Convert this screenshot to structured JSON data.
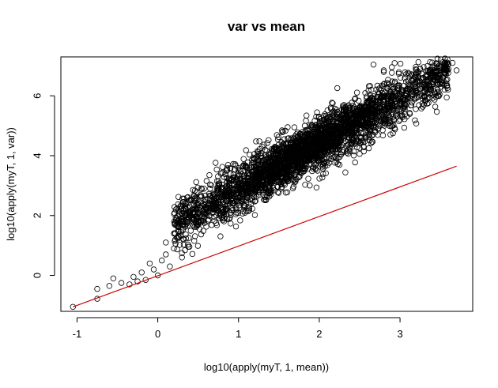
{
  "chart_data": {
    "type": "scatter",
    "title": "var vs mean",
    "xlabel": "log10(apply(myT, 1, mean))",
    "ylabel": "log10(apply(myT, 1, var))",
    "xlim": [
      -1.2,
      3.9
    ],
    "ylim": [
      -1.2,
      7.3
    ],
    "x_ticks": [
      -1,
      0,
      1,
      2,
      3
    ],
    "y_ticks": [
      0,
      2,
      4,
      6
    ],
    "x_tick_labels": [
      "-1",
      "0",
      "1",
      "2",
      "3"
    ],
    "y_tick_labels": [
      "0",
      "2",
      "4",
      "6"
    ],
    "grid": false,
    "point_marker": "open-circle",
    "point_color": "#000000",
    "series": [
      {
        "values": [
          {
            "x": -1.05,
            "y": -1.05
          },
          {
            "x": -0.75,
            "y": -0.78
          },
          {
            "x": -0.75,
            "y": -0.45
          },
          {
            "x": -0.6,
            "y": -0.35
          },
          {
            "x": -0.55,
            "y": -0.1
          },
          {
            "x": -0.45,
            "y": -0.25
          },
          {
            "x": -0.35,
            "y": -0.3
          },
          {
            "x": -0.3,
            "y": -0.05
          },
          {
            "x": -0.25,
            "y": -0.2
          },
          {
            "x": -0.2,
            "y": 0.1
          },
          {
            "x": -0.15,
            "y": -0.15
          },
          {
            "x": -0.1,
            "y": 0.4
          },
          {
            "x": -0.05,
            "y": 0.2
          },
          {
            "x": 0.0,
            "y": 0.0
          },
          {
            "x": 0.05,
            "y": 0.5
          },
          {
            "x": 0.1,
            "y": 0.7
          },
          {
            "x": 0.1,
            "y": 1.1
          },
          {
            "x": 0.15,
            "y": 0.3
          },
          {
            "x": 0.2,
            "y": 0.9
          },
          {
            "x": 0.25,
            "y": 1.3
          },
          {
            "x": 0.3,
            "y": 0.6
          },
          {
            "x": 0.3,
            "y": 1.8
          },
          {
            "x": 3.5,
            "y": 6.7
          },
          {
            "x": 3.55,
            "y": 7.05
          },
          {
            "x": 3.6,
            "y": 6.9
          },
          {
            "x": 3.65,
            "y": 7.1
          },
          {
            "x": 3.7,
            "y": 6.85
          },
          {
            "x": 3.4,
            "y": 6.95
          }
        ]
      }
    ],
    "point_cloud": {
      "x_range": [
        0.2,
        3.6
      ],
      "center_intercept": 1.35,
      "center_slope": 1.53,
      "spread": 0.42,
      "count": 3200
    },
    "reference_line": {
      "label": "",
      "color": "#cc0000",
      "x": [
        -1.05,
        3.7
      ],
      "y": [
        -1.05,
        3.65
      ]
    }
  }
}
